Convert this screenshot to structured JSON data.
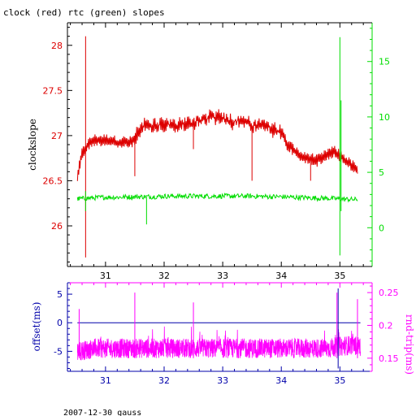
{
  "page": {
    "title": "clock (red) rtc (green) slopes",
    "footer": "2007-12-30 gauss"
  },
  "colors": {
    "clock": "#dd0000",
    "rtc": "#00dd00",
    "offset": "#0000aa",
    "rndtrip": "#ff00ff",
    "frame": "#000000"
  },
  "chart_data": [
    {
      "type": "line",
      "title": "clock (red) rtc (green) slopes",
      "ylabel": "clockslope",
      "xlim": [
        30.35,
        35.55
      ],
      "ylim": [
        25.55,
        28.25
      ],
      "y2lim": [
        -3.5,
        18.5
      ],
      "xticks": [
        "31",
        "32",
        "33",
        "34",
        "35"
      ],
      "yticks": [
        "26",
        "26.5",
        "27",
        "27.5",
        "28"
      ],
      "y2ticks": [
        "0",
        "5",
        "10",
        "15"
      ],
      "series": [
        {
          "name": "clock",
          "axis": "left",
          "x": [
            30.52,
            30.6,
            30.7,
            30.8,
            30.9,
            31.0,
            31.1,
            31.2,
            31.3,
            31.4,
            31.5,
            31.6,
            31.7,
            31.8,
            31.9,
            32.0,
            32.1,
            32.2,
            32.3,
            32.4,
            32.5,
            32.6,
            32.7,
            32.8,
            32.9,
            33.0,
            33.1,
            33.2,
            33.3,
            33.4,
            33.5,
            33.6,
            33.7,
            33.8,
            33.9,
            34.0,
            34.1,
            34.2,
            34.3,
            34.4,
            34.5,
            34.6,
            34.7,
            34.8,
            34.9,
            35.0,
            35.1,
            35.2,
            35.3
          ],
          "y": [
            26.55,
            26.8,
            26.9,
            26.95,
            26.95,
            26.95,
            26.95,
            26.92,
            26.93,
            26.92,
            26.95,
            27.1,
            27.12,
            27.1,
            27.12,
            27.13,
            27.13,
            27.1,
            27.12,
            27.12,
            27.15,
            27.17,
            27.18,
            27.2,
            27.2,
            27.2,
            27.17,
            27.15,
            27.18,
            27.15,
            27.12,
            27.1,
            27.12,
            27.1,
            27.05,
            27.05,
            26.9,
            26.85,
            26.78,
            26.75,
            26.75,
            26.72,
            26.75,
            26.8,
            26.82,
            26.78,
            26.72,
            26.67,
            26.62
          ]
        },
        {
          "name": "rtc",
          "axis": "right",
          "x": [
            30.52,
            30.8,
            31.0,
            31.2,
            31.5,
            31.8,
            32.0,
            32.2,
            32.5,
            32.8,
            33.0,
            33.2,
            33.5,
            33.8,
            34.0,
            34.2,
            34.5,
            34.8,
            35.0,
            35.2,
            35.3
          ],
          "y": [
            2.6,
            2.7,
            2.75,
            2.75,
            2.8,
            2.8,
            2.85,
            2.85,
            2.85,
            2.85,
            2.85,
            2.85,
            2.85,
            2.8,
            2.8,
            2.75,
            2.7,
            2.65,
            2.6,
            2.55,
            2.55
          ]
        }
      ],
      "spikes": [
        {
          "series": "clock",
          "x": 30.66,
          "ymin": 25.65,
          "ymax": 28.1
        },
        {
          "series": "clock",
          "x": 31.5,
          "ymin": 26.55,
          "ymax": 27.0
        },
        {
          "series": "clock",
          "x": 32.5,
          "ymin": 26.85,
          "ymax": 27.15
        },
        {
          "series": "clock",
          "x": 33.5,
          "ymin": 26.5,
          "ymax": 27.1
        },
        {
          "series": "clock",
          "x": 34.5,
          "ymin": 26.5,
          "ymax": 26.75
        },
        {
          "series": "rtc",
          "x": 30.66,
          "ymin": 1.5,
          "ymax": 3.3
        },
        {
          "series": "rtc",
          "x": 31.7,
          "ymin": 0.3,
          "ymax": 2.8
        },
        {
          "series": "rtc",
          "x": 35.0,
          "ymin": -2.5,
          "ymax": 17.2
        },
        {
          "series": "rtc",
          "x": 35.02,
          "ymin": 1.5,
          "ymax": 11.5
        }
      ]
    },
    {
      "type": "line",
      "ylabel": "offset(ms)",
      "y2label": "rnd-trip(ms)",
      "xlim": [
        30.35,
        35.55
      ],
      "ylim": [
        -8.5,
        7
      ],
      "y2lim": [
        0.13,
        0.265
      ],
      "xticks": [
        "31",
        "32",
        "33",
        "34",
        "35"
      ],
      "yticks": [
        "-5",
        "0",
        "5"
      ],
      "y2ticks": [
        "0.15",
        "0.2",
        "0.25"
      ],
      "series": [
        {
          "name": "offset",
          "axis": "left",
          "x": [
            30.52,
            35.35
          ],
          "y": [
            0,
            0
          ]
        },
        {
          "name": "rnd-trip",
          "axis": "right",
          "x": [
            30.52,
            30.8,
            31.0,
            31.2,
            31.5,
            31.8,
            32.0,
            32.2,
            32.5,
            32.8,
            33.0,
            33.2,
            33.5,
            33.8,
            34.0,
            34.2,
            34.5,
            34.8,
            35.0,
            35.2,
            35.35
          ],
          "y": [
            0.16,
            0.165,
            0.165,
            0.165,
            0.165,
            0.165,
            0.165,
            0.165,
            0.165,
            0.165,
            0.165,
            0.165,
            0.165,
            0.165,
            0.165,
            0.165,
            0.165,
            0.165,
            0.168,
            0.17,
            0.168
          ]
        }
      ],
      "spikes": [
        {
          "series": "rndtrip",
          "x": 30.55,
          "ymin": 0.15,
          "ymax": 0.225
        },
        {
          "series": "rndtrip",
          "x": 31.5,
          "ymin": 0.15,
          "ymax": 0.25
        },
        {
          "series": "rndtrip",
          "x": 32.5,
          "ymin": 0.15,
          "ymax": 0.235
        },
        {
          "series": "rndtrip",
          "x": 34.95,
          "ymin": 0.15,
          "ymax": 0.25
        },
        {
          "series": "rndtrip",
          "x": 35.3,
          "ymin": 0.15,
          "ymax": 0.24
        },
        {
          "series": "offset",
          "x": 34.97,
          "ymin": -8,
          "ymax": 6
        }
      ]
    }
  ]
}
